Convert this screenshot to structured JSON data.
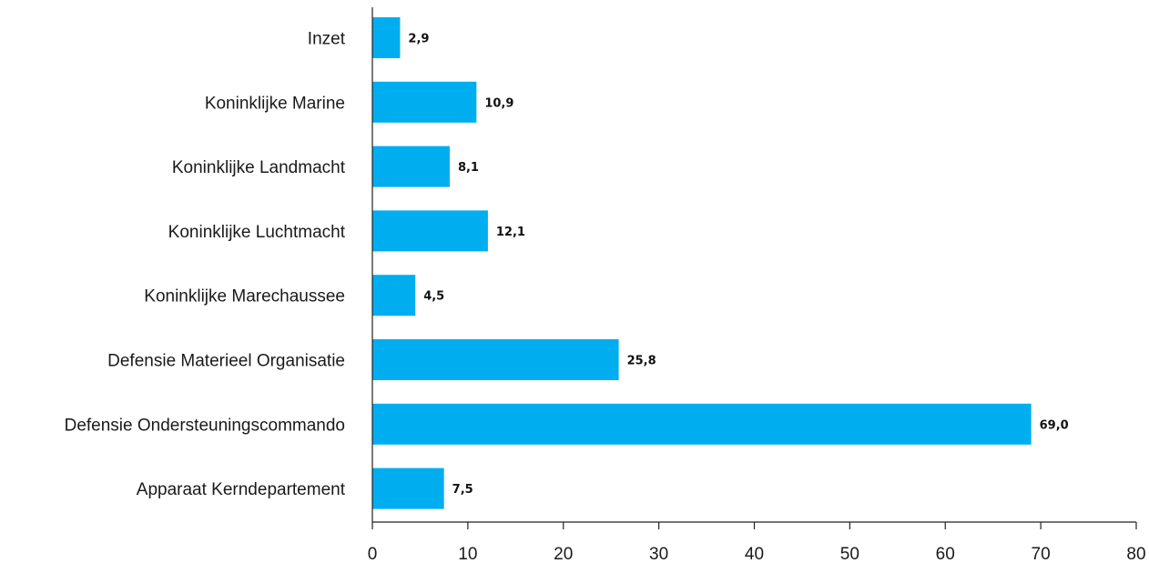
{
  "chart_data": {
    "type": "bar",
    "orientation": "horizontal",
    "categories": [
      "Inzet",
      "Koninklijke Marine",
      "Koninklijke Landmacht",
      "Koninklijke Luchtmacht",
      "Koninklijke Marechaussee",
      "Defensie Materieel Organisatie",
      "Defensie Ondersteuningscommando",
      "Apparaat Kerndepartement"
    ],
    "values": [
      2.9,
      10.9,
      8.1,
      12.1,
      4.5,
      25.8,
      69.0,
      7.5
    ],
    "data_labels": [
      "2,9",
      "10,9",
      "8,1",
      "12,1",
      "4,5",
      "25,8",
      "69,0",
      "7,5"
    ],
    "xlim": [
      0,
      80
    ],
    "x_ticks": [
      0,
      10,
      20,
      30,
      40,
      50,
      60,
      70,
      80
    ],
    "x_tick_labels": [
      "0",
      "10",
      "20",
      "30",
      "40",
      "50",
      "60",
      "70",
      "80"
    ],
    "title": "",
    "xlabel": "",
    "ylabel": "",
    "grid": false,
    "legend": "none",
    "colors": {
      "bar": "#00aeef",
      "axis": "#222222",
      "text": "#1a1a1a"
    }
  }
}
